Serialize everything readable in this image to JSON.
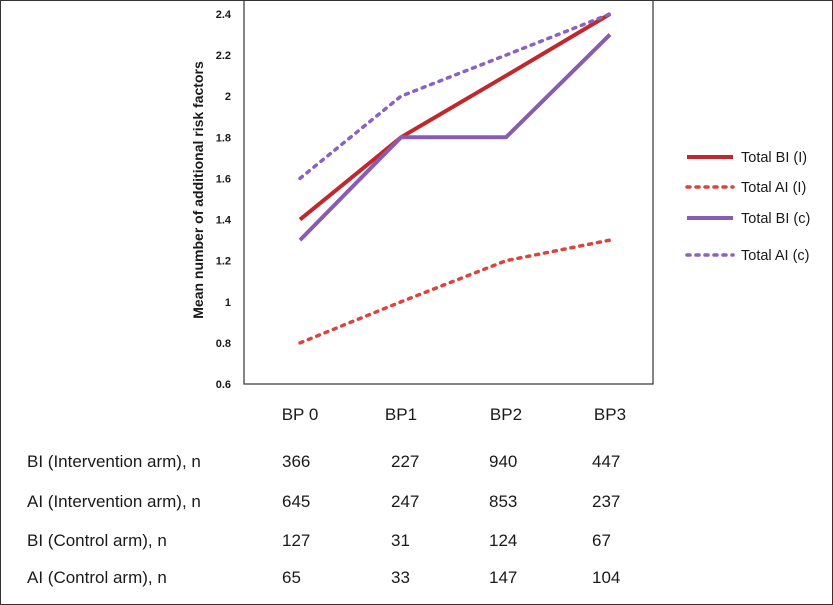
{
  "chart_data": {
    "type": "line",
    "title": "",
    "xlabel": "",
    "ylabel": "Mean number of additional risk factors",
    "categories": [
      "BP 0",
      "BP1",
      "BP2",
      "BP3"
    ],
    "ylim": [
      0.6,
      2.4
    ],
    "yticks": [
      "0.6",
      "0.8",
      "1",
      "1.2",
      "1.4",
      "1.6",
      "1.8",
      "2",
      "2.2",
      "2.4"
    ],
    "legend_position": "right",
    "series": [
      {
        "name": "Total BI (I)",
        "values": [
          1.4,
          1.8,
          2.1,
          2.4
        ],
        "color": "#c0282d",
        "style": "solid"
      },
      {
        "name": "Total AI (I)",
        "values": [
          0.8,
          1.0,
          1.2,
          1.3
        ],
        "color": "#d9453f",
        "style": "dotted"
      },
      {
        "name": "Total BI (c)",
        "values": [
          1.3,
          1.8,
          1.8,
          2.3
        ],
        "color": "#8a5cb0",
        "style": "solid"
      },
      {
        "name": "Total AI (c)",
        "values": [
          1.6,
          2.0,
          2.2,
          2.4
        ],
        "color": "#8a62c2",
        "style": "dotted"
      }
    ]
  },
  "table": {
    "rows": [
      {
        "label": "BI (Intervention arm), n",
        "values": [
          "366",
          "227",
          "940",
          "447"
        ]
      },
      {
        "label": "AI (Intervention arm), n",
        "values": [
          "645",
          "247",
          "853",
          "237"
        ]
      },
      {
        "label": "BI (Control arm), n",
        "values": [
          "127",
          "31",
          "124",
          "67"
        ]
      },
      {
        "label": "AI (Control arm), n",
        "values": [
          "65",
          "33",
          "147",
          "104"
        ]
      }
    ]
  }
}
